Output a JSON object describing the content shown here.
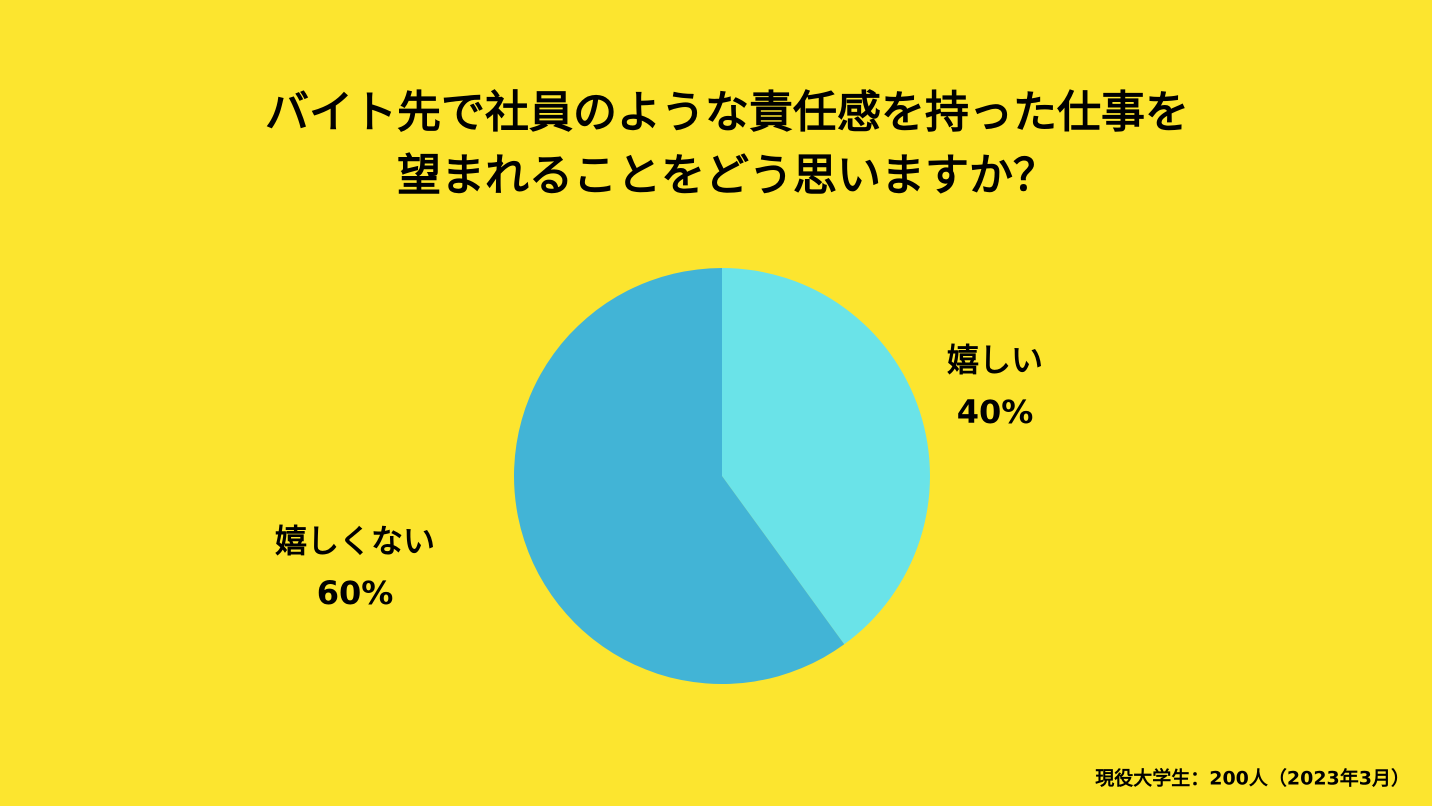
{
  "chart_data": {
    "type": "pie",
    "title": [
      "バイト先で社員のような責任感を持った仕事を",
      "望まれることをどう思いますか？"
    ],
    "categories": [
      "嬉しい",
      "嬉しくない"
    ],
    "values": [
      40,
      60
    ],
    "value_labels": [
      "40%",
      "60%"
    ],
    "colors": [
      "#6ae3e8",
      "#42b4d6"
    ],
    "footnote": "現役大学生：200人（2023年3月）"
  }
}
